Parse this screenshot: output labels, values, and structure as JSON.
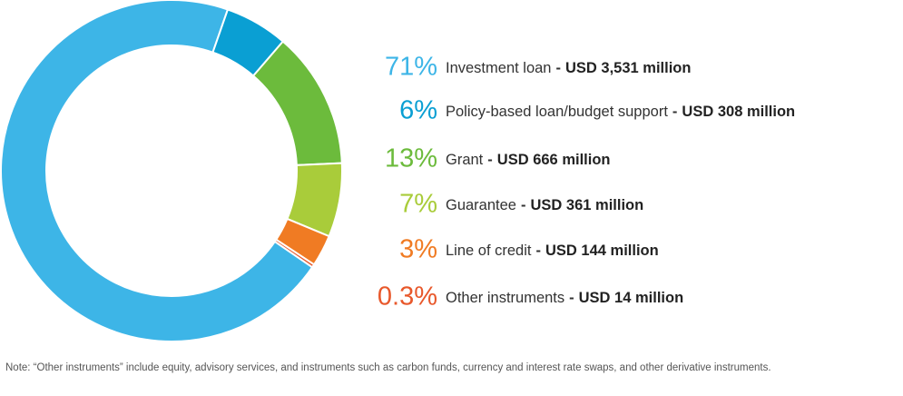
{
  "chart_data": {
    "type": "pie",
    "donut": true,
    "categories": [
      "Investment loan",
      "Policy-based loan/budget support",
      "Grant",
      "Guarantee",
      "Line of credit",
      "Other instruments"
    ],
    "values": [
      71,
      6,
      13,
      7,
      3,
      0.3
    ],
    "value_labels": [
      "71%",
      "6%",
      "13%",
      "7%",
      "3%",
      "0.3%"
    ],
    "colors": [
      "#3db5e7",
      "#0a9fd3",
      "#6cbb3c",
      "#a9cc3a",
      "#f07b23",
      "#e8582b"
    ],
    "separator": "-",
    "amounts": [
      3531,
      308,
      666,
      361,
      144,
      14
    ],
    "amount_labels": [
      "USD 3,531 million",
      "USD 308 million",
      "USD 666 million",
      "USD 361 million",
      "USD 144 million",
      "USD 14 million"
    ],
    "note": "Note: “Other instruments” include equity, advisory services, and instruments such as carbon funds, currency and interest rate swaps, and other derivative instruments."
  }
}
